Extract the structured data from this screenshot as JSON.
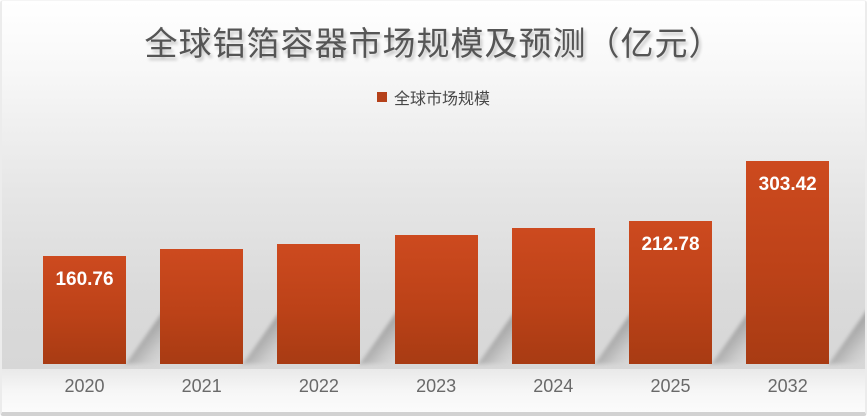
{
  "chart_data": {
    "type": "bar",
    "title": "全球铝箔容器市场规模及预测（亿元）",
    "legend": [
      "全球市场规模"
    ],
    "legend_position": "top",
    "categories": [
      "2020",
      "2021",
      "2022",
      "2023",
      "2024",
      "2025",
      "2032"
    ],
    "values": [
      160.76,
      171.2,
      178.9,
      193.2,
      202.4,
      212.78,
      303.42
    ],
    "data_labels": [
      "160.76",
      "",
      "",
      "",
      "",
      "212.78",
      "303.42"
    ],
    "unit": "亿元",
    "xlabel": "",
    "ylabel": "",
    "ylim": [
      0,
      320
    ],
    "grid": false,
    "colors": {
      "bar_top": "#cd4a1f",
      "bar_mid": "#bc4218",
      "bar_bottom": "#a83b13",
      "value_label": "#ffffff",
      "axis_tick_label": "#696969",
      "title": "#555555",
      "legend_marker": "#b5411a"
    }
  }
}
